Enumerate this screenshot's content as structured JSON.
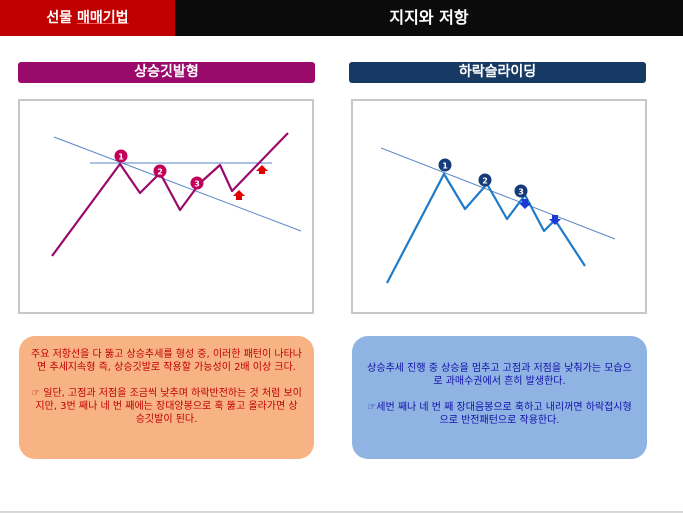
{
  "header": {
    "left_prefix": "선물 ",
    "left_underlined": "매매기법",
    "title": "지지와 저항"
  },
  "left_panel": {
    "title": "상승깃발형",
    "markers": [
      "1",
      "2",
      "3"
    ],
    "colors": {
      "title_bg": "#9a0a6b",
      "line": "#9a0a6b",
      "markers": "#c2005a",
      "arrow": "#e00000",
      "box_bg": "#f7b383",
      "box_text": "#c00000"
    },
    "desc_line1": "주요 저항선을 다 뚫고 상승추세를 형성 중, 이러한 패턴이 나타나면 추세지속형 즉, 상승깃발로 작용할 가능성이 2배 이상 크다.",
    "desc_line2": "☞ 일단, 고점과 저점을 조금씩 낮추며 하락반전하는 것 처럼 보이지만, 3번 째나 네 번 째에는 장대양봉으로 훅 뚫고 올라가면 상승깃발이 된다."
  },
  "right_panel": {
    "title": "하락슬라이딩",
    "markers": [
      "1",
      "2",
      "3"
    ],
    "colors": {
      "title_bg": "#163a63",
      "line": "#1f7ac8",
      "markers": "#163a7a",
      "arrow": "#1a3ad6",
      "box_bg": "#8fb3e3",
      "box_text": "#1010a8"
    },
    "desc_line1": "상승추세 진행 중 상승을 멈추고 고점과 저점을 낮춰가는 모습으로 과매수권에서 흔히 발생한다.",
    "desc_line2": "☞세번 째나 네 번 째 장대음봉으로 훅하고 내리꺼면 하락접시형으로 반전패턴으로 작용한다."
  }
}
